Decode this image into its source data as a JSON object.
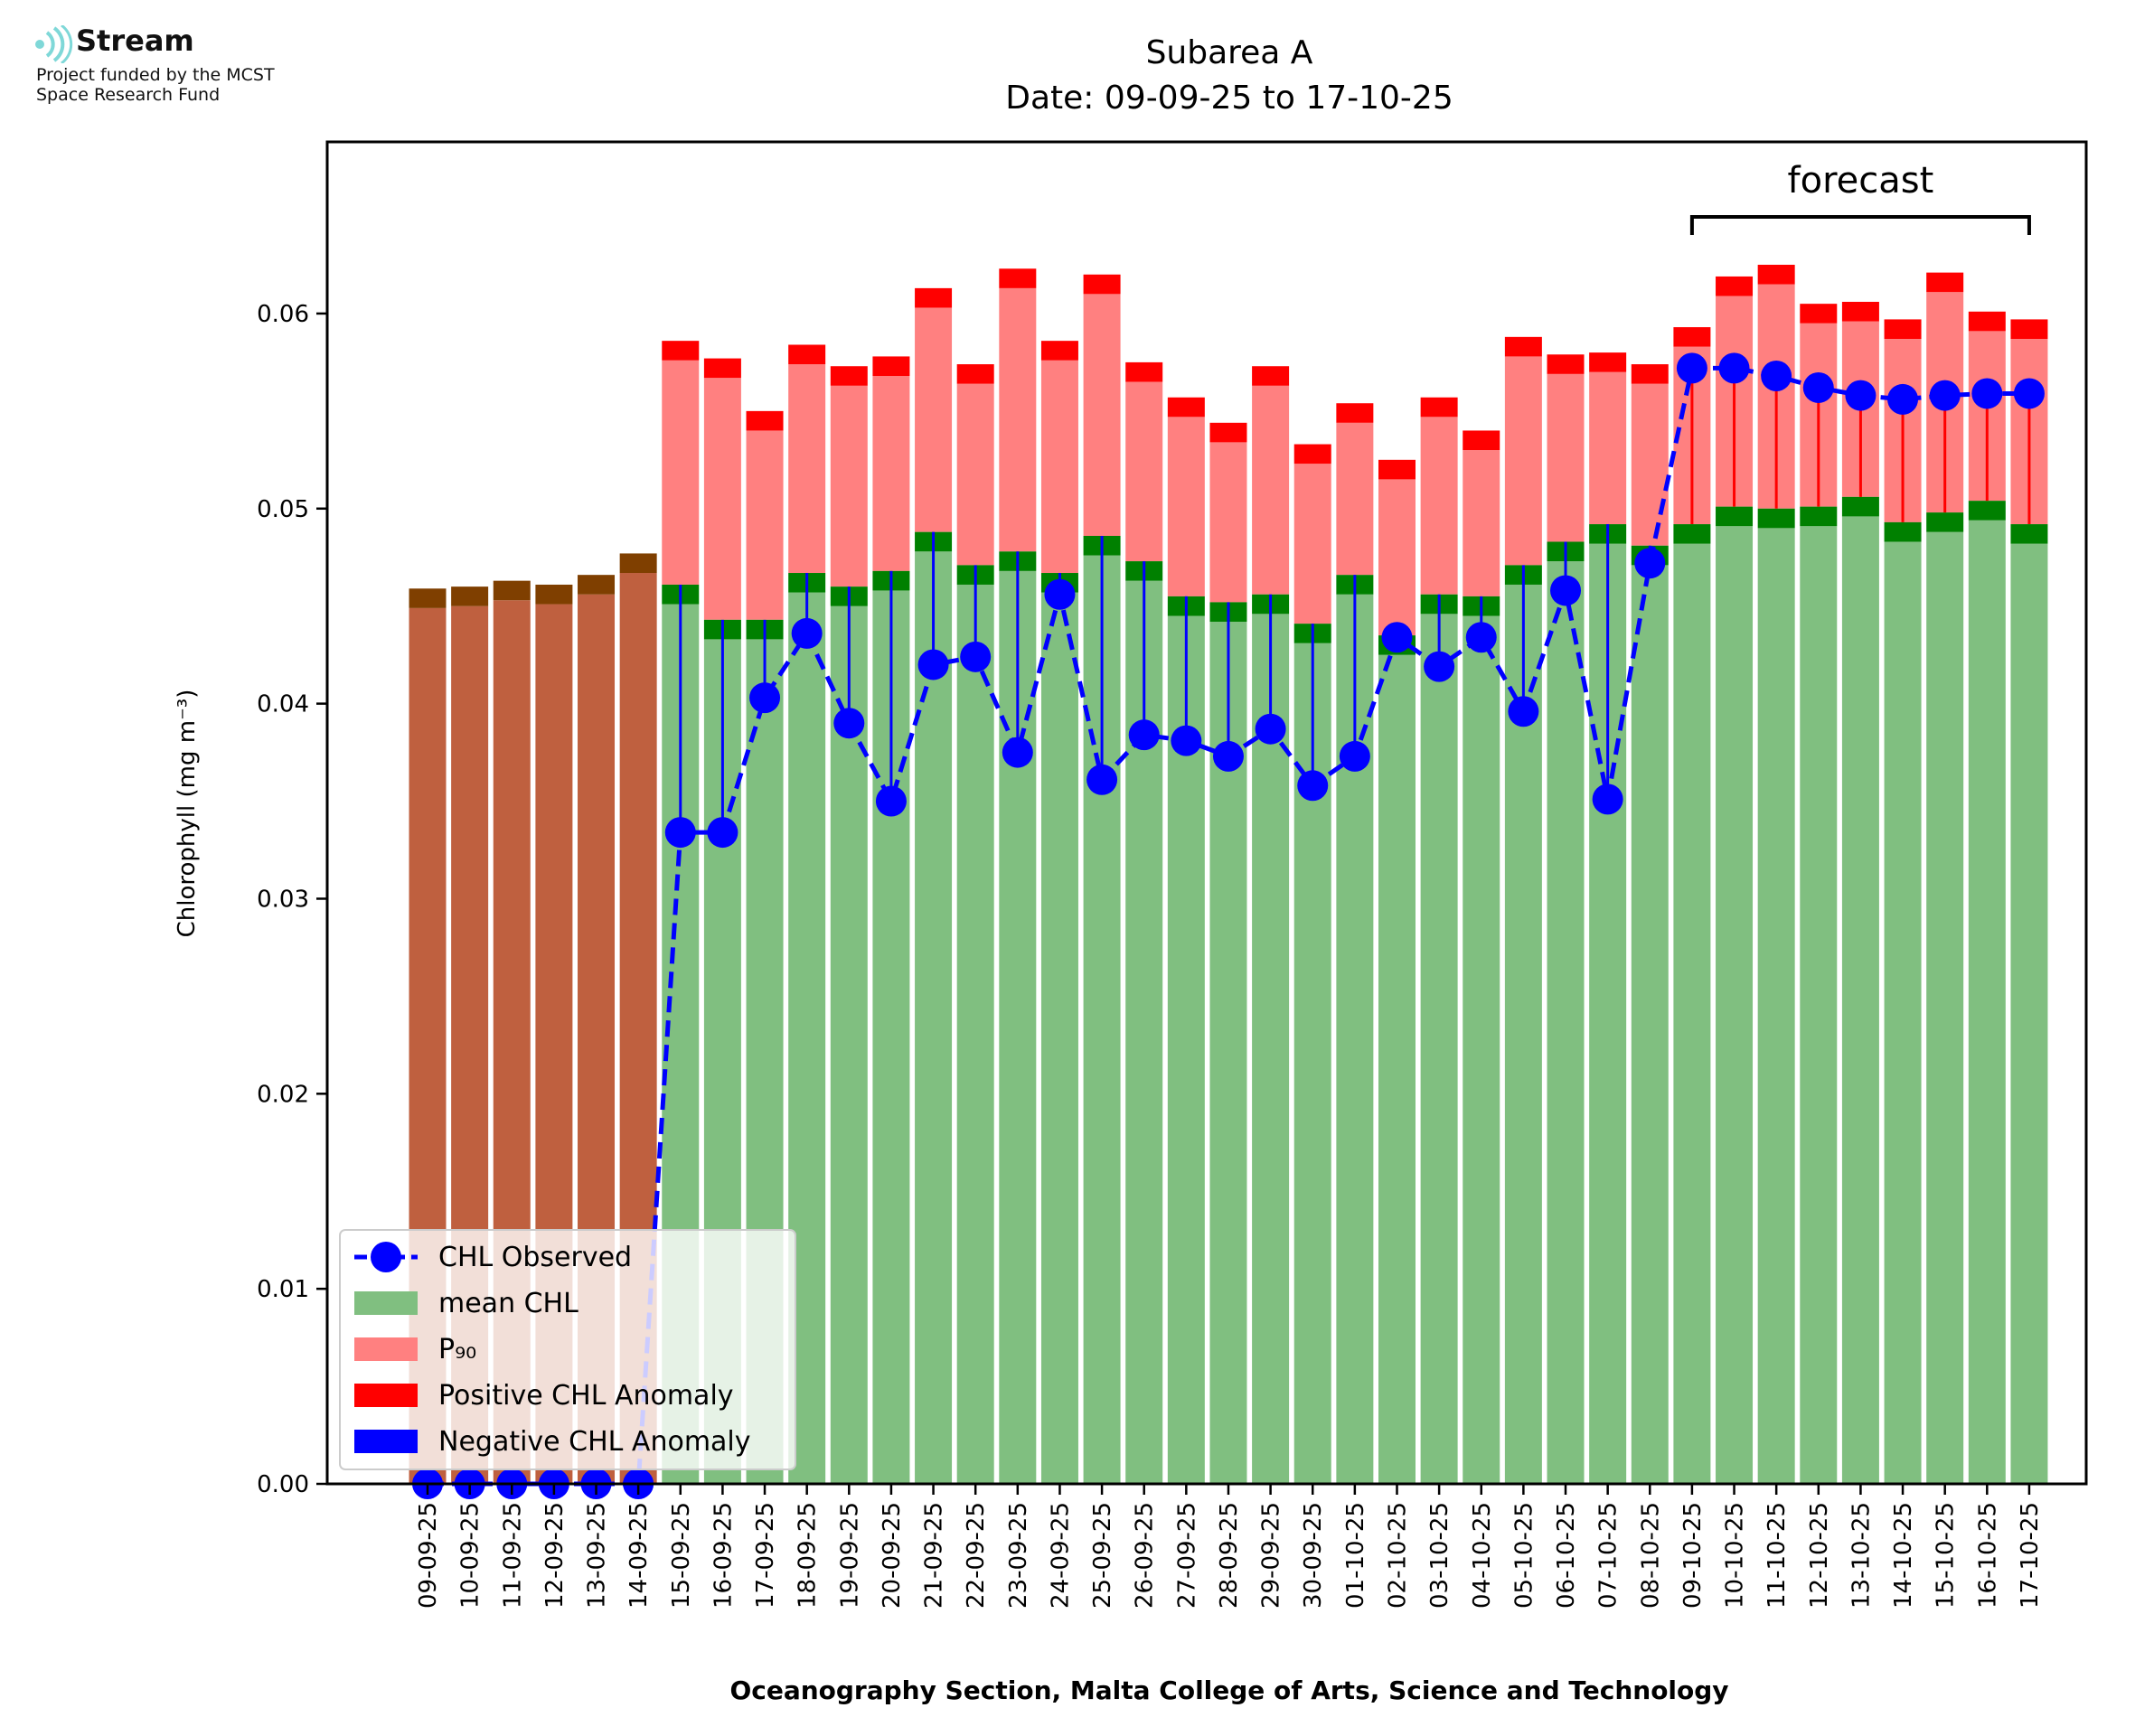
{
  "logo": {
    "name": "Stream",
    "line1": "Project funded by the MCST",
    "line2": "Space Research Fund"
  },
  "chart_data": {
    "type": "bar",
    "title": "Subarea A",
    "subtitle": "Date: 09-09-25 to 17-10-25",
    "xlabel": "Oceanography Section, Malta College of Arts, Science and Technology",
    "ylabel": "Chlorophyll (mg m⁻³)",
    "ylim": [
      0,
      0.0688
    ],
    "yticks": [
      "0.00",
      "0.01",
      "0.02",
      "0.03",
      "0.04",
      "0.05",
      "0.06"
    ],
    "annotation": "forecast",
    "forecast_range": [
      "09-10-25",
      "17-10-25"
    ],
    "legend_position": "lower-left",
    "legend": [
      {
        "label": "CHL Observed",
        "kind": "line-marker",
        "color": "#0000ff"
      },
      {
        "label": "mean CHL",
        "kind": "patch",
        "color": "#80bf80"
      },
      {
        "label": "P₉₀",
        "kind": "patch",
        "color": "#ff8080"
      },
      {
        "label": "Positive CHL Anomaly",
        "kind": "patch",
        "color": "#ff0000"
      },
      {
        "label": "Negative CHL Anomaly",
        "kind": "patch",
        "color": "#0000ff"
      }
    ],
    "colors": {
      "historical_fill": "#bf603f",
      "historical_cap": "#7f3f00",
      "mean": "#80bf80",
      "mean_cap": "#008000",
      "p90": "#ff8080",
      "p90_cap": "#ff0000",
      "observed": "#0000ff",
      "positive_anomaly": "#ff0000",
      "negative_anomaly": "#0000ff"
    },
    "categories": [
      "09-09-25",
      "10-09-25",
      "11-09-25",
      "12-09-25",
      "13-09-25",
      "14-09-25",
      "15-09-25",
      "16-09-25",
      "17-09-25",
      "18-09-25",
      "19-09-25",
      "20-09-25",
      "21-09-25",
      "22-09-25",
      "23-09-25",
      "24-09-25",
      "25-09-25",
      "26-09-25",
      "27-09-25",
      "28-09-25",
      "29-09-25",
      "30-09-25",
      "01-10-25",
      "02-10-25",
      "03-10-25",
      "04-10-25",
      "05-10-25",
      "06-10-25",
      "07-10-25",
      "08-10-25",
      "09-10-25",
      "10-10-25",
      "11-10-25",
      "12-10-25",
      "13-10-25",
      "14-10-25",
      "15-10-25",
      "16-10-25",
      "17-10-25"
    ],
    "series": [
      {
        "name": "mean CHL",
        "values": [
          0.0459,
          0.046,
          0.0463,
          0.0461,
          0.0466,
          0.0477,
          0.0461,
          0.0443,
          0.0443,
          0.0467,
          0.046,
          0.0468,
          0.0488,
          0.0471,
          0.0478,
          0.0467,
          0.0486,
          0.0473,
          0.0455,
          0.0452,
          0.0456,
          0.0441,
          0.0466,
          0.0435,
          0.0456,
          0.0455,
          0.0471,
          0.0483,
          0.0492,
          0.0481,
          0.0492,
          0.0501,
          0.05,
          0.0501,
          0.0506,
          0.0493,
          0.0498,
          0.0504,
          0.0492
        ]
      },
      {
        "name": "P₉₀",
        "values": [
          null,
          null,
          null,
          null,
          null,
          null,
          0.0586,
          0.0577,
          0.055,
          0.0584,
          0.0573,
          0.0578,
          0.0613,
          0.0574,
          0.0623,
          0.0586,
          0.062,
          0.0575,
          0.0557,
          0.0544,
          0.0573,
          0.0533,
          0.0554,
          0.0525,
          0.0557,
          0.054,
          0.0588,
          0.0579,
          0.058,
          0.0574,
          0.0593,
          0.0619,
          0.0625,
          0.0605,
          0.0606,
          0.0597,
          0.0621,
          0.0601,
          0.0597
        ]
      },
      {
        "name": "CHL Observed",
        "values": [
          0.0,
          0.0,
          0.0,
          0.0,
          0.0,
          0.0,
          0.0334,
          0.0334,
          0.0403,
          0.0436,
          0.039,
          0.035,
          0.042,
          0.0424,
          0.0375,
          0.0456,
          0.0361,
          0.0384,
          0.0381,
          0.0373,
          0.0387,
          0.0358,
          0.0373,
          0.0434,
          0.0419,
          0.0434,
          0.0396,
          0.0458,
          0.0351,
          0.0472,
          0.0572,
          0.0572,
          0.0568,
          0.0562,
          0.0558,
          0.0556,
          0.0558,
          0.0559,
          0.0559
        ]
      }
    ]
  }
}
